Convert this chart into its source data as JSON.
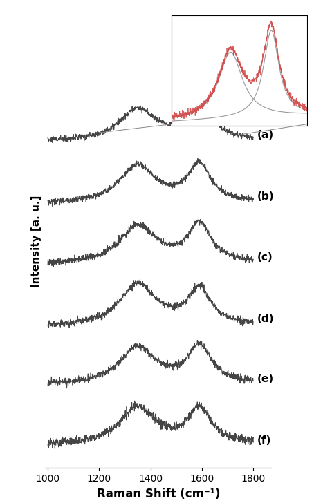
{
  "x_min": 1000,
  "x_max": 1800,
  "xlabel": "Raman Shift (cm⁻¹)",
  "ylabel": "Intensity [a. u.]",
  "labels": [
    "(a)",
    "(b)",
    "(c)",
    "(d)",
    "(e)",
    "(f)"
  ],
  "line_color": "#454545",
  "inset_line_color": "#d04040",
  "inset_fit_color": "#999999",
  "background": "#ffffff",
  "d_peak": 1350,
  "g_peak": 1590,
  "offsets": [
    5.0,
    4.0,
    3.05,
    2.1,
    1.15,
    0.2
  ],
  "noise_scale": 0.04,
  "seed": 42
}
